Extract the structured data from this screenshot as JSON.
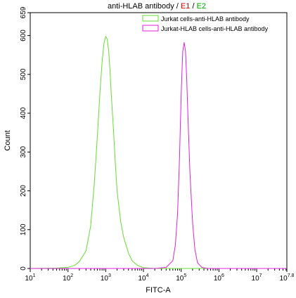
{
  "chart_data": {
    "type": "line",
    "title_parts": [
      {
        "text": "anti-HLAB antibody",
        "color": "#000000"
      },
      {
        "text": " / ",
        "color": "#000000"
      },
      {
        "text": "E1",
        "color": "#cc0000"
      },
      {
        "text": " / ",
        "color": "#000000"
      },
      {
        "text": "E2",
        "color": "#00a000"
      }
    ],
    "xlabel": "FITC-A",
    "ylabel": "Count",
    "x_scale": "log",
    "xlim": [
      10,
      63095734
    ],
    "ylim": [
      0,
      659
    ],
    "x_ticks": [
      {
        "base": "10",
        "exp": "1",
        "value": 10
      },
      {
        "base": "10",
        "exp": "2",
        "value": 100
      },
      {
        "base": "10",
        "exp": "3",
        "value": 1000
      },
      {
        "base": "10",
        "exp": "4",
        "value": 10000
      },
      {
        "base": "10",
        "exp": "5",
        "value": 100000
      },
      {
        "base": "10",
        "exp": "6",
        "value": 1000000
      },
      {
        "base": "10",
        "exp": "7",
        "value": 10000000
      },
      {
        "base": "10",
        "exp": "7.8",
        "value": 63095734
      }
    ],
    "y_ticks": [
      {
        "label": "0",
        "value": 0
      },
      {
        "label": "100",
        "value": 100
      },
      {
        "label": "200",
        "value": 200
      },
      {
        "label": "300",
        "value": 300
      },
      {
        "label": "400",
        "value": 400
      },
      {
        "label": "500",
        "value": 500
      },
      {
        "label": "600",
        "value": 600
      },
      {
        "label": "659",
        "value": 659
      }
    ],
    "legend_position": "top-right",
    "series": [
      {
        "name": "Jurkat cells-anti-HLAB antibody",
        "color": "#66dd33",
        "x": [
          10,
          50,
          100,
          150,
          200,
          300,
          400,
          500,
          600,
          700,
          800,
          900,
          1000,
          1100,
          1200,
          1300,
          1400,
          1600,
          1800,
          2000,
          2500,
          3000,
          4000,
          5000,
          7000,
          10000,
          20000,
          63095734
        ],
        "y": [
          0,
          1,
          3,
          8,
          18,
          45,
          110,
          220,
          340,
          450,
          530,
          580,
          598,
          590,
          560,
          510,
          450,
          360,
          270,
          200,
          120,
          80,
          40,
          20,
          8,
          2,
          0,
          0
        ]
      },
      {
        "name": "Jurkat-HLAB cells-anti-HLAB antibody",
        "color": "#dd22dd",
        "x": [
          10,
          20000,
          40000,
          60000,
          70000,
          80000,
          90000,
          100000,
          110000,
          120000,
          130000,
          140000,
          150000,
          170000,
          200000,
          230000,
          270000,
          350000,
          500000,
          63095734
        ],
        "y": [
          0,
          0,
          3,
          20,
          60,
          140,
          280,
          450,
          560,
          582,
          560,
          490,
          400,
          250,
          120,
          50,
          15,
          3,
          0,
          0
        ]
      }
    ]
  }
}
